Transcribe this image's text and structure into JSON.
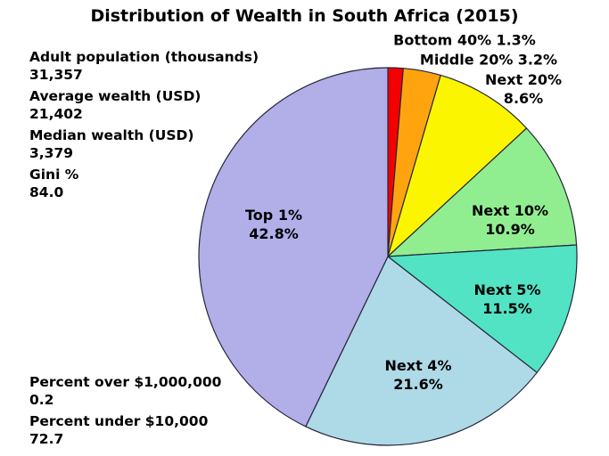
{
  "title": "Distribution of Wealth in South Africa (2015)",
  "stats_top": [
    {
      "label": "Adult population (thousands)",
      "value": "31,357"
    },
    {
      "label": "Average wealth (USD)",
      "value": "21,402"
    },
    {
      "label": "Median wealth (USD)",
      "value": "3,379"
    },
    {
      "label": "Gini %",
      "value": "84.0"
    }
  ],
  "stats_bottom": [
    {
      "label": "Percent over $1,000,000",
      "value": "0.2"
    },
    {
      "label": "Percent under $10,000",
      "value": "72.7"
    }
  ],
  "chart_data": {
    "type": "pie",
    "title": "Distribution of Wealth in South Africa (2015)",
    "start_angle": "12 o'clock",
    "direction": "clockwise",
    "legend_position": "none",
    "edge_color": "#26263a",
    "background_color": "#ffffff",
    "text_color": "#000000",
    "slices": [
      {
        "name": "Bottom 40%",
        "value": 1.3,
        "value_label": "1.3%",
        "color": "#f40000",
        "label_placement": "outside"
      },
      {
        "name": "Middle 20%",
        "value": 3.2,
        "value_label": "3.2%",
        "color": "#ffa40e",
        "label_placement": "outside"
      },
      {
        "name": "Next 20%",
        "value": 8.6,
        "value_label": "8.6%",
        "color": "#fcf500",
        "label_placement": "outside"
      },
      {
        "name": "Next 10%",
        "value": 10.9,
        "value_label": "10.9%",
        "color": "#90ee90",
        "label_placement": "inside"
      },
      {
        "name": "Next 5%",
        "value": 11.5,
        "value_label": "11.5%",
        "color": "#52e3c4",
        "label_placement": "inside"
      },
      {
        "name": "Next 4%",
        "value": 21.6,
        "value_label": "21.6%",
        "color": "#aed9e6",
        "label_placement": "inside"
      },
      {
        "name": "Top 1%",
        "value": 42.8,
        "value_label": "42.8%",
        "color": "#b1aee8",
        "label_placement": "inside"
      }
    ]
  }
}
